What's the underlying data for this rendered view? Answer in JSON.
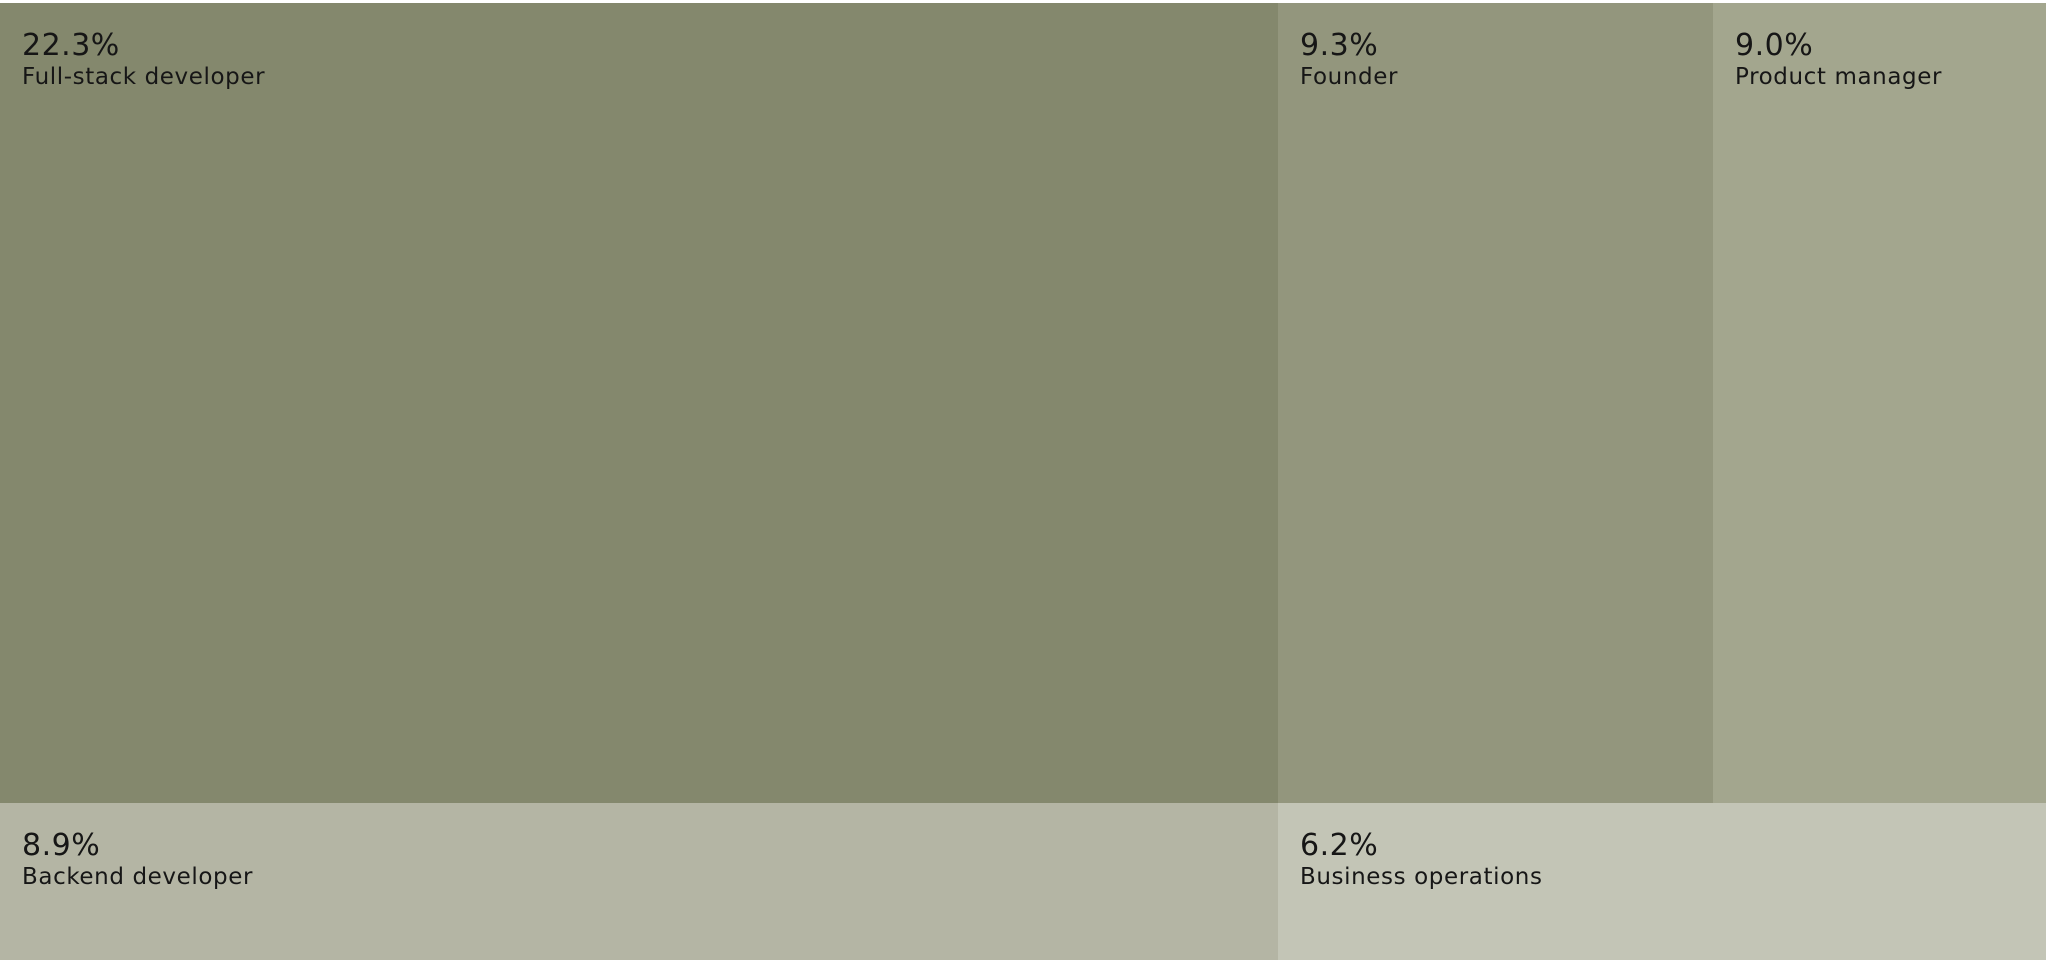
{
  "chart_data": {
    "type": "treemap",
    "items": [
      {
        "name": "Full-stack developer",
        "value": 22.3,
        "value_label": "22.3%",
        "color": "#84886D"
      },
      {
        "name": "Founder",
        "value": 9.3,
        "value_label": "9.3%",
        "color": "#93967D"
      },
      {
        "name": "Product manager",
        "value": 9.0,
        "value_label": "9.0%",
        "color": "#A3A68E"
      },
      {
        "name": "Backend developer",
        "value": 8.9,
        "value_label": "8.9%",
        "color": "#B4B5A4"
      },
      {
        "name": "Business operations",
        "value": 6.2,
        "value_label": "6.2%",
        "color": "#C3C5B6"
      }
    ]
  }
}
